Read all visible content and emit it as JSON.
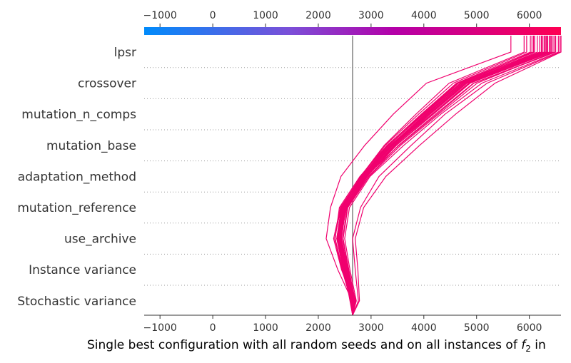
{
  "chart_data": {
    "type": "decision_plot",
    "features": [
      "lpsr",
      "crossover",
      "mutation_n_comps",
      "mutation_base",
      "adaptation_method",
      "mutation_reference",
      "use_archive",
      "Instance variance",
      "Stochastic variance"
    ],
    "x_ticks": [
      -1000,
      0,
      1000,
      2000,
      3000,
      4000,
      5000,
      6000
    ],
    "x_tick_labels": [
      "−1000",
      "0",
      "1000",
      "2000",
      "3000",
      "4000",
      "5000",
      "6000"
    ],
    "xlim": [
      -1300,
      6600
    ],
    "base_value": 2650,
    "colormap": [
      "#008bfb",
      "#7b4fd8",
      "#b400a8",
      "#ff0052"
    ],
    "xlabel_prefix": "Single best configuration with all random seeds and on all instances of ",
    "xlabel_var": "f",
    "xlabel_sub": "2",
    "xlabel_suffix": " in",
    "line_color": "#f0006e",
    "paths_description": "each path lists x values from bottom (base) to top: [base, Stochastic variance, Instance variance, use_archive, mutation_reference, adaptation_method, mutation_base, mutation_n_comps, crossover, lpsr]",
    "paths": [
      [
        2650,
        2640,
        2370,
        2150,
        2230,
        2430,
        2880,
        3420,
        4050,
        5650
      ],
      [
        2650,
        2660,
        2440,
        2290,
        2420,
        2850,
        3310,
        3950,
        4620,
        6200
      ],
      [
        2650,
        2620,
        2480,
        2380,
        2460,
        2860,
        3380,
        4040,
        4700,
        6050
      ],
      [
        2650,
        2680,
        2520,
        2410,
        2540,
        2930,
        3450,
        4120,
        4820,
        6350
      ],
      [
        2650,
        2600,
        2490,
        2350,
        2440,
        2800,
        3250,
        3850,
        4480,
        5900
      ],
      [
        2650,
        2710,
        2560,
        2440,
        2520,
        2900,
        3530,
        4250,
        4950,
        6500
      ],
      [
        2650,
        2640,
        2460,
        2320,
        2400,
        2790,
        3300,
        3980,
        4640,
        6100
      ],
      [
        2650,
        2660,
        2500,
        2390,
        2480,
        2840,
        3360,
        4050,
        4760,
        6250
      ],
      [
        2650,
        2700,
        2580,
        2470,
        2560,
        2960,
        3560,
        4280,
        5010,
        6450
      ],
      [
        2650,
        2630,
        2470,
        2360,
        2450,
        2820,
        3330,
        4000,
        4690,
        6150
      ],
      [
        2650,
        2670,
        2510,
        2400,
        2490,
        2880,
        3400,
        4080,
        4780,
        6300
      ],
      [
        2650,
        2690,
        2550,
        2430,
        2530,
        2920,
        3480,
        4180,
        4880,
        6400
      ],
      [
        2650,
        2610,
        2480,
        2370,
        2470,
        2850,
        3370,
        4020,
        4720,
        6200
      ],
      [
        2650,
        2650,
        2490,
        2380,
        2420,
        2810,
        3270,
        3900,
        4560,
        5950
      ],
      [
        2650,
        2720,
        2600,
        2500,
        2590,
        2980,
        3620,
        4320,
        5100,
        6550
      ],
      [
        2650,
        2640,
        2480,
        2360,
        2460,
        2860,
        3390,
        4060,
        4750,
        6280
      ],
      [
        2650,
        2680,
        2530,
        2420,
        2510,
        2900,
        3440,
        4150,
        4850,
        6380
      ],
      [
        2650,
        2620,
        2470,
        2350,
        2440,
        2830,
        3340,
        3990,
        4660,
        6080
      ],
      [
        2650,
        2700,
        2570,
        2460,
        2550,
        2950,
        3520,
        4220,
        4940,
        6480
      ],
      [
        2650,
        2660,
        2500,
        2380,
        2470,
        2870,
        3410,
        4090,
        4790,
        6320
      ],
      [
        2650,
        2640,
        2490,
        2370,
        2460,
        2850,
        3380,
        4050,
        4740,
        6230
      ],
      [
        2650,
        2690,
        2540,
        2430,
        2520,
        2910,
        3470,
        4170,
        4870,
        6420
      ],
      [
        2650,
        2780,
        2750,
        2700,
        2860,
        3280,
        3920,
        4600,
        5350,
        6600
      ],
      [
        2650,
        2760,
        2700,
        2650,
        2800,
        3150,
        3760,
        4400,
        5200,
        6580
      ],
      [
        2650,
        2620,
        2450,
        2310,
        2430,
        2820,
        3310,
        3960,
        4620,
        6020
      ],
      [
        2650,
        2670,
        2520,
        2410,
        2500,
        2890,
        3430,
        4110,
        4810,
        6340
      ]
    ]
  }
}
